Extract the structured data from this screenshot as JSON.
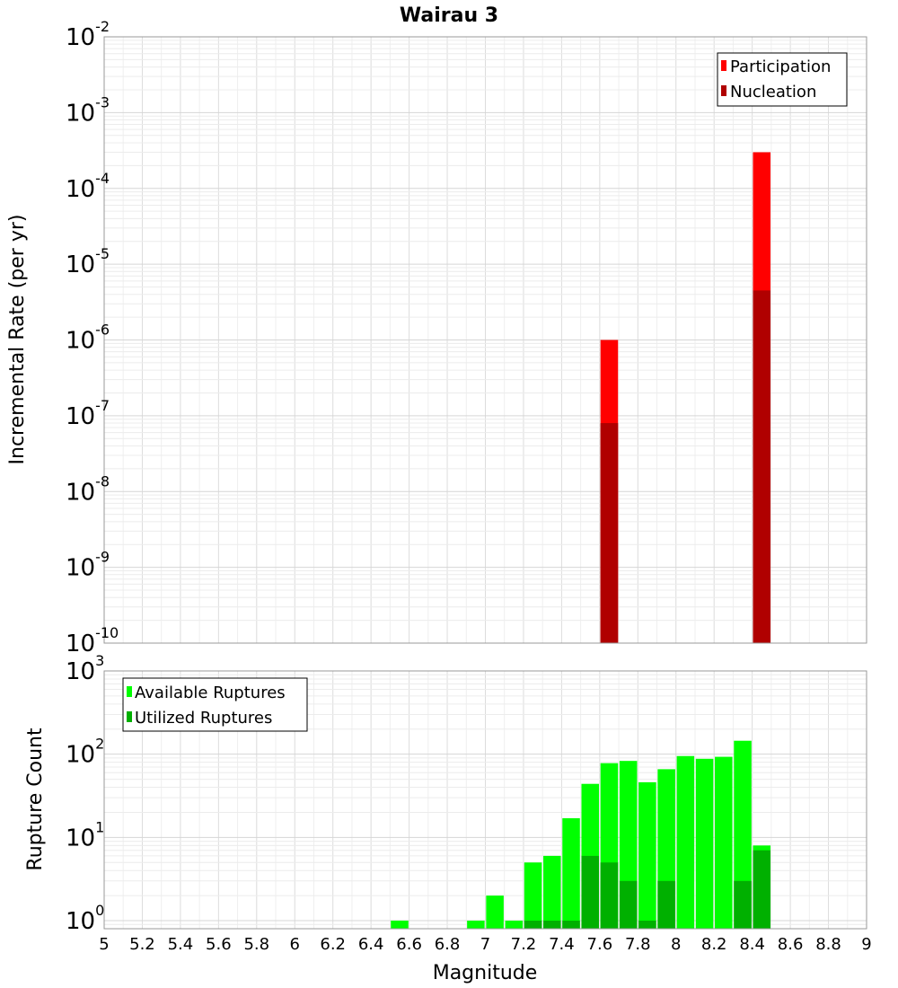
{
  "title": "Wairau 3",
  "chart_data": [
    {
      "type": "bar",
      "panel": "top",
      "ylabel": "Incremental Rate (per yr)",
      "yscale": "log",
      "ylim": [
        1e-10,
        0.01
      ],
      "xlim": [
        5,
        9
      ],
      "ytick_exponents": [
        "-2",
        "-3",
        "-4",
        "-5",
        "-6",
        "-7",
        "-8",
        "-9",
        "-10"
      ],
      "legend": {
        "placement": "top-right"
      },
      "series": [
        {
          "name": "Participation",
          "color": "#ff0000",
          "x": [
            7.65,
            8.45
          ],
          "values": [
            1e-06,
            0.0003
          ]
        },
        {
          "name": "Nucleation",
          "color": "#b00000",
          "x": [
            7.65,
            8.45
          ],
          "values": [
            8e-08,
            4.5e-06
          ]
        }
      ],
      "grid": true
    },
    {
      "type": "bar",
      "panel": "bottom",
      "ylabel": "Rupture Count",
      "xlabel": "Magnitude",
      "yscale": "log",
      "ylim": [
        0.8,
        1000
      ],
      "xlim": [
        5,
        9
      ],
      "ytick_exponents": [
        "3",
        "2",
        "1",
        "0"
      ],
      "xticks": [
        "5",
        "5.2",
        "5.4",
        "5.6",
        "5.8",
        "6",
        "6.2",
        "6.4",
        "6.6",
        "6.8",
        "7",
        "7.2",
        "7.4",
        "7.6",
        "7.8",
        "8",
        "8.2",
        "8.4",
        "8.6",
        "8.8",
        "9"
      ],
      "legend": {
        "placement": "top-left"
      },
      "series": [
        {
          "name": "Available Ruptures",
          "color": "#00ff00",
          "x": [
            6.55,
            6.95,
            7.05,
            7.15,
            7.25,
            7.35,
            7.45,
            7.55,
            7.65,
            7.75,
            7.85,
            7.95,
            8.05,
            8.15,
            8.25,
            8.35,
            8.45
          ],
          "values": [
            1,
            1,
            2,
            1,
            5,
            6,
            17,
            44,
            78,
            83,
            46,
            66,
            95,
            88,
            93,
            145,
            8
          ]
        },
        {
          "name": "Utilized Ruptures",
          "color": "#00b000",
          "x": [
            7.25,
            7.35,
            7.45,
            7.55,
            7.65,
            7.75,
            7.85,
            7.95,
            8.35,
            8.45
          ],
          "values": [
            1,
            1,
            1,
            6,
            5,
            3,
            1,
            3,
            3,
            7
          ]
        }
      ],
      "grid": true
    }
  ]
}
